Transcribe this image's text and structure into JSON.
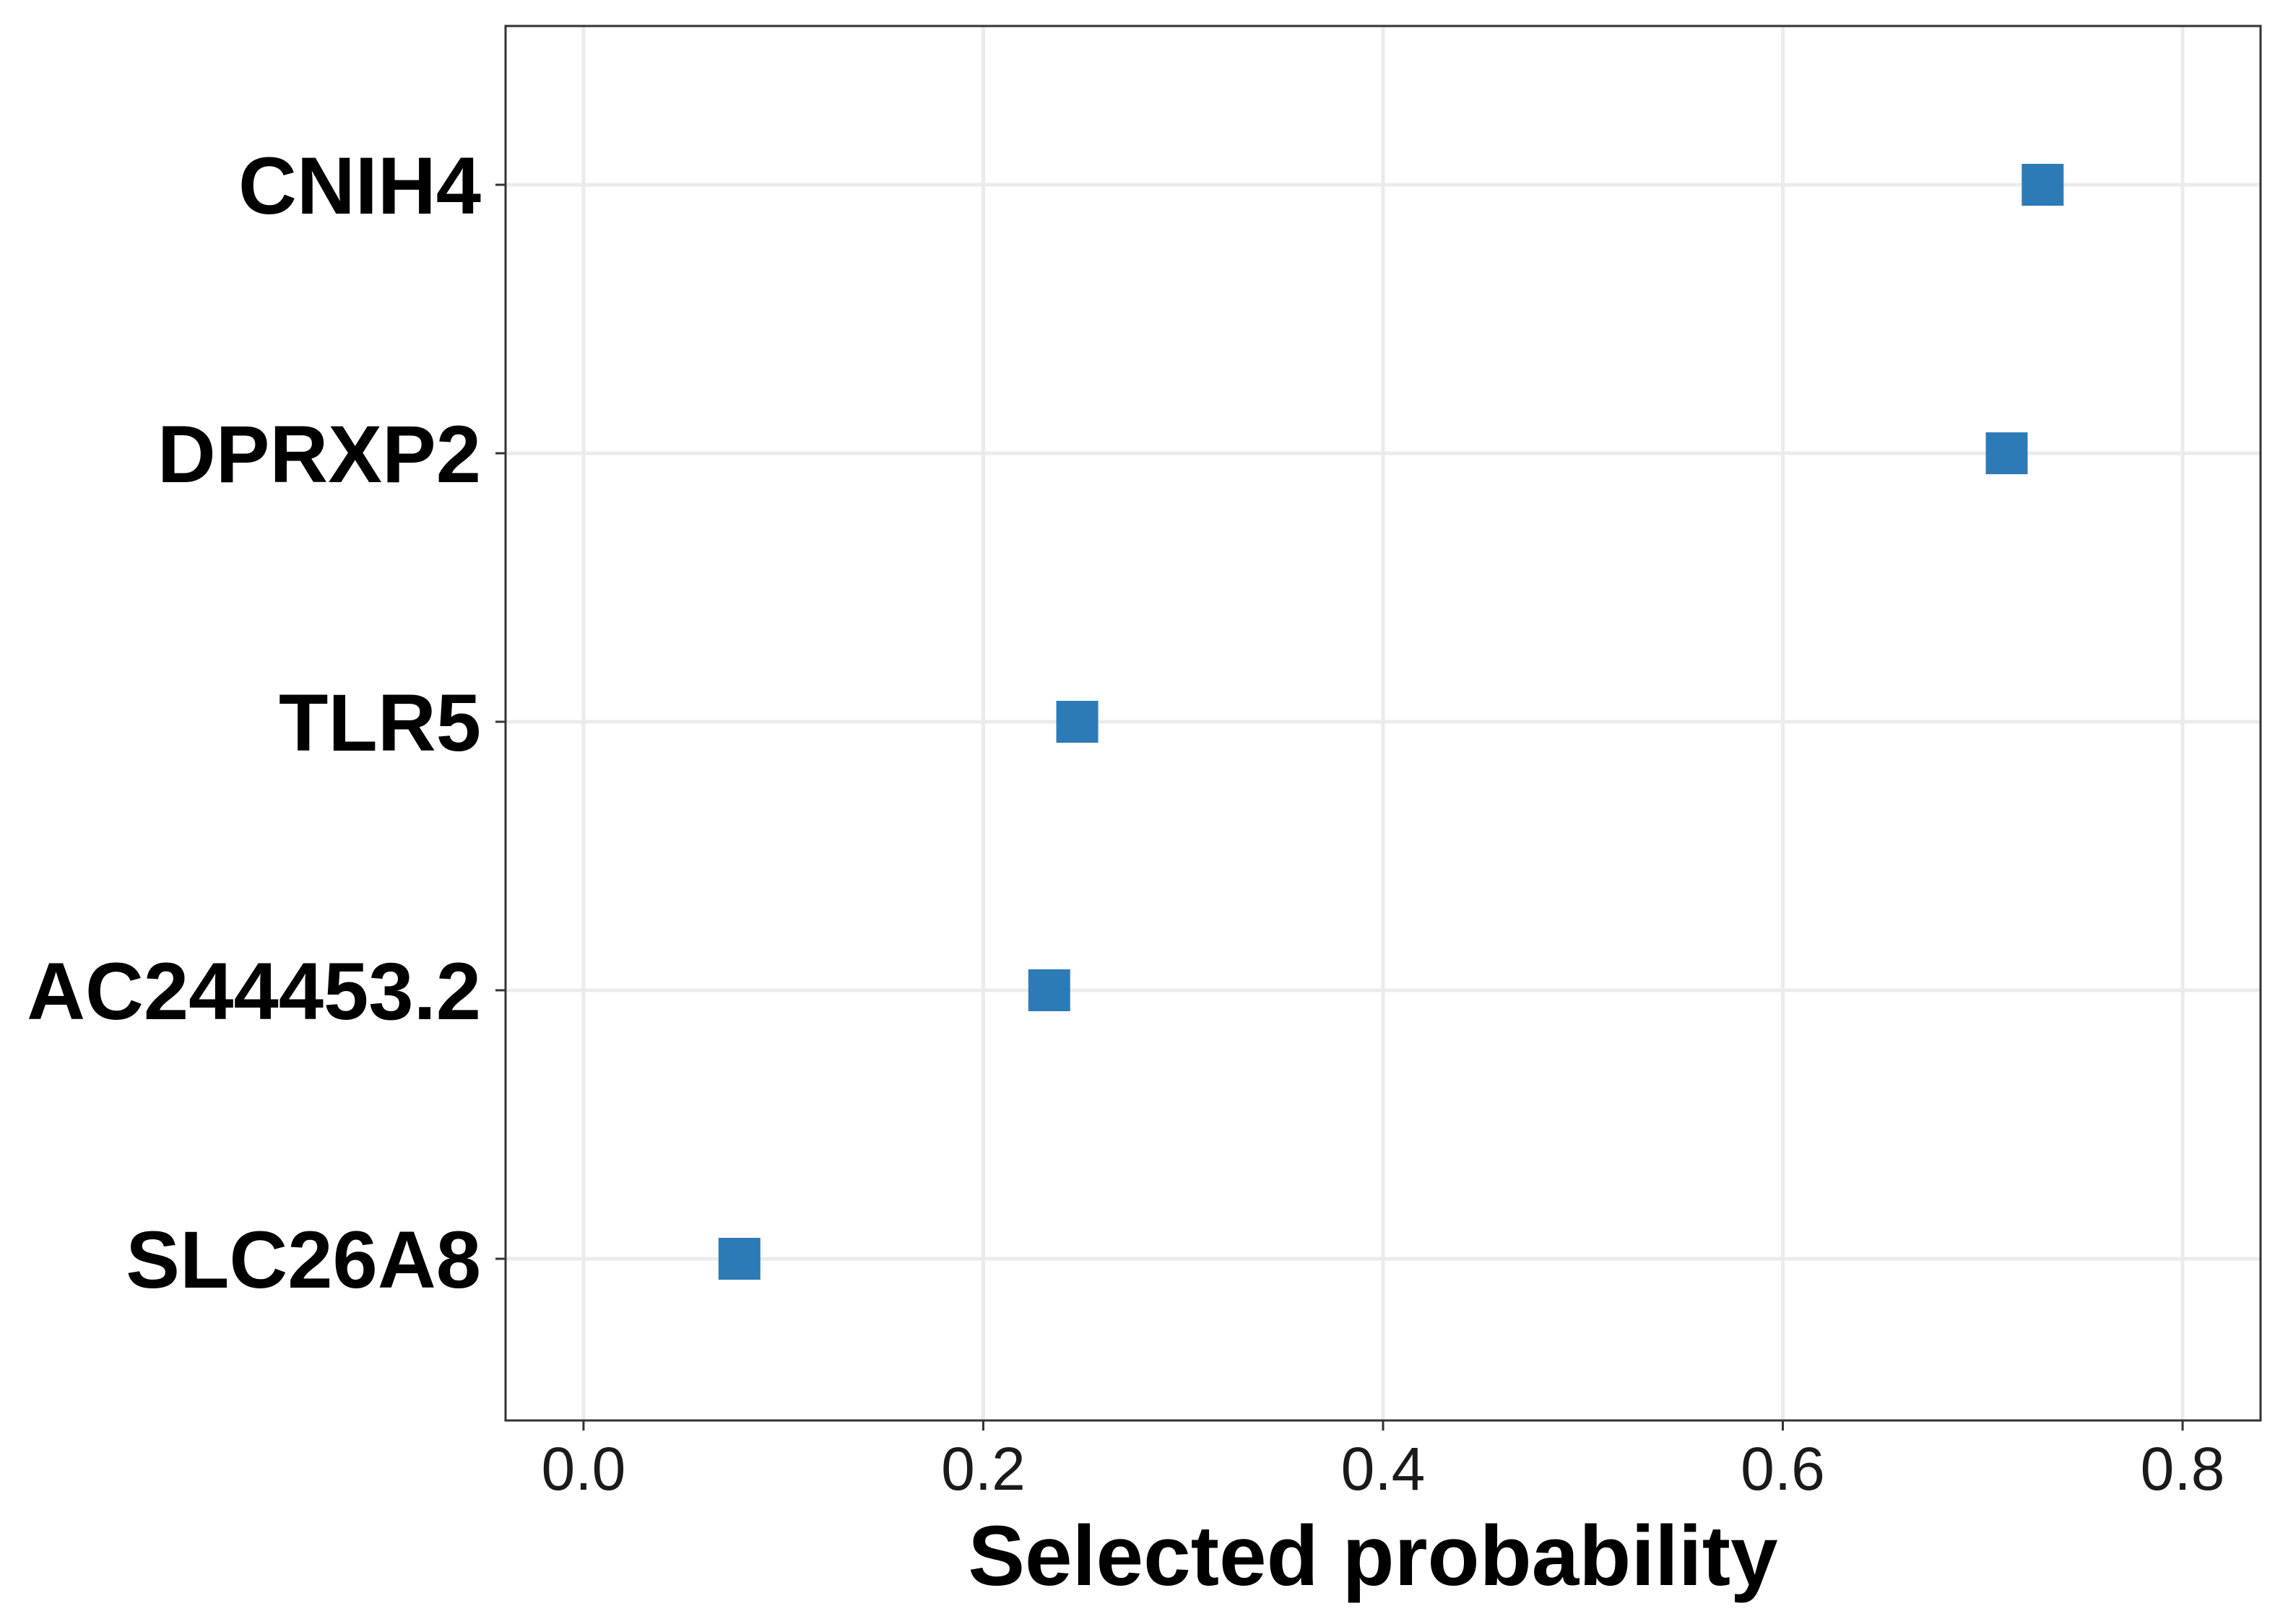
{
  "chart_data": {
    "type": "scatter",
    "title": "",
    "xlabel": "Selected probability",
    "ylabel": "",
    "categories": [
      "CNIH4",
      "DPRXP2",
      "TLR5",
      "AC244453.2",
      "SLC26A8"
    ],
    "values": [
      0.73,
      0.712,
      0.247,
      0.233,
      0.078
    ],
    "xlim": [
      -0.039,
      0.839
    ],
    "xticks": [
      0.0,
      0.2,
      0.4,
      0.6,
      0.8
    ],
    "xtick_labels": [
      "0.0",
      "0.2",
      "0.4",
      "0.6",
      "0.8"
    ],
    "marker": "square",
    "grid": true,
    "colors": {
      "point": "#2C7BB6",
      "grid": "#EBEBEB",
      "border": "#333333"
    }
  }
}
